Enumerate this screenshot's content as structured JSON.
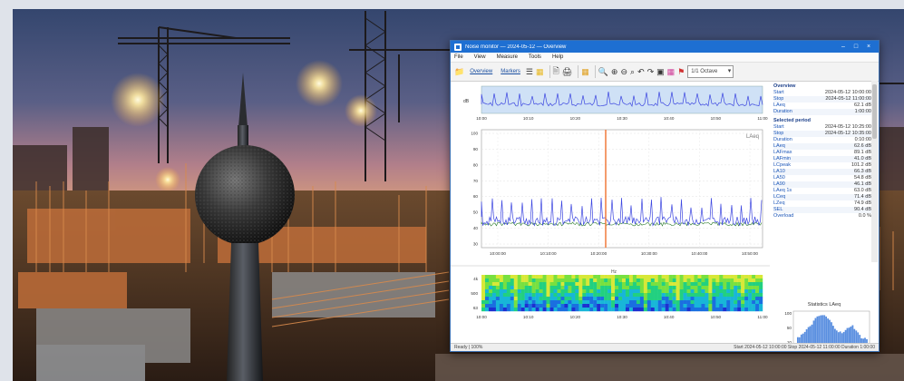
{
  "window": {
    "title": "Noise monitor — 2024-05-12 — Overview",
    "menu": [
      "File",
      "View",
      "Measure",
      "Tools",
      "Help"
    ],
    "toolbar": {
      "overview_label": "Overview",
      "markers_label": "Markers",
      "period_select": "1/1 Octave"
    },
    "statusbar": {
      "left": "Ready | 100%",
      "right": "Start 2024-05-12 10:00:00  Stop 2024-05-12 11:00:00  Duration 1:00:00"
    }
  },
  "overview_strip": {
    "y_label": "dB",
    "x_ticks": [
      "10:00",
      "10:10",
      "10:20",
      "10:30",
      "10:40",
      "10:50",
      "11:00"
    ]
  },
  "main_chart": {
    "badge": "LAeq",
    "y_ticks": [
      "100",
      "90",
      "80",
      "70",
      "60",
      "50",
      "40",
      "30"
    ],
    "x_ticks": [
      "10:00:00",
      "10:10:00",
      "10:20:00",
      "10:30:00",
      "10:40:00",
      "10:50:00"
    ]
  },
  "spectrum_strip": {
    "title": "Hz",
    "y_ticks": [
      "4k",
      "500",
      "63"
    ],
    "x_ticks": [
      "10:00",
      "10:10",
      "10:20",
      "10:30",
      "10:40",
      "10:50",
      "11:00"
    ]
  },
  "histogram": {
    "title": "Statistics LAeq",
    "y_ticks": [
      "100",
      "50",
      "10"
    ]
  },
  "summary": {
    "head1": "Overview",
    "rows1": [
      {
        "k": "Start",
        "v": "2024-05-12 10:00:00"
      },
      {
        "k": "Stop",
        "v": "2024-05-12 11:00:00"
      },
      {
        "k": "LAeq",
        "v": "62.1 dB"
      },
      {
        "k": "Duration",
        "v": "1:00:00"
      }
    ],
    "head2": "Selected period",
    "rows2": [
      {
        "k": "Start",
        "v": "2024-05-12 10:25:00"
      },
      {
        "k": "Stop",
        "v": "2024-05-12 10:35:00"
      },
      {
        "k": "Duration",
        "v": "0:10:00"
      },
      {
        "k": "LAeq",
        "v": "62.6 dB"
      },
      {
        "k": "LAFmax",
        "v": "89.1 dB"
      },
      {
        "k": "LAFmin",
        "v": "41.0 dB"
      },
      {
        "k": "LCpeak",
        "v": "101.2 dB"
      },
      {
        "k": "LA10",
        "v": "66.3 dB"
      },
      {
        "k": "LA50",
        "v": "54.8 dB"
      },
      {
        "k": "LA90",
        "v": "46.1 dB"
      },
      {
        "k": "LAeq 1s",
        "v": "63.0 dB"
      },
      {
        "k": "LCeq",
        "v": "71.4 dB"
      },
      {
        "k": "LZeq",
        "v": "74.9 dB"
      },
      {
        "k": "SEL",
        "v": "90.4 dB"
      },
      {
        "k": "Overload",
        "v": "0.0 %"
      }
    ]
  },
  "colors": {
    "titlebar": "#1e6fd2",
    "trace": "#3b45e0",
    "cursor": "#f07a3c",
    "strip_bg": "#cfe1f6"
  }
}
